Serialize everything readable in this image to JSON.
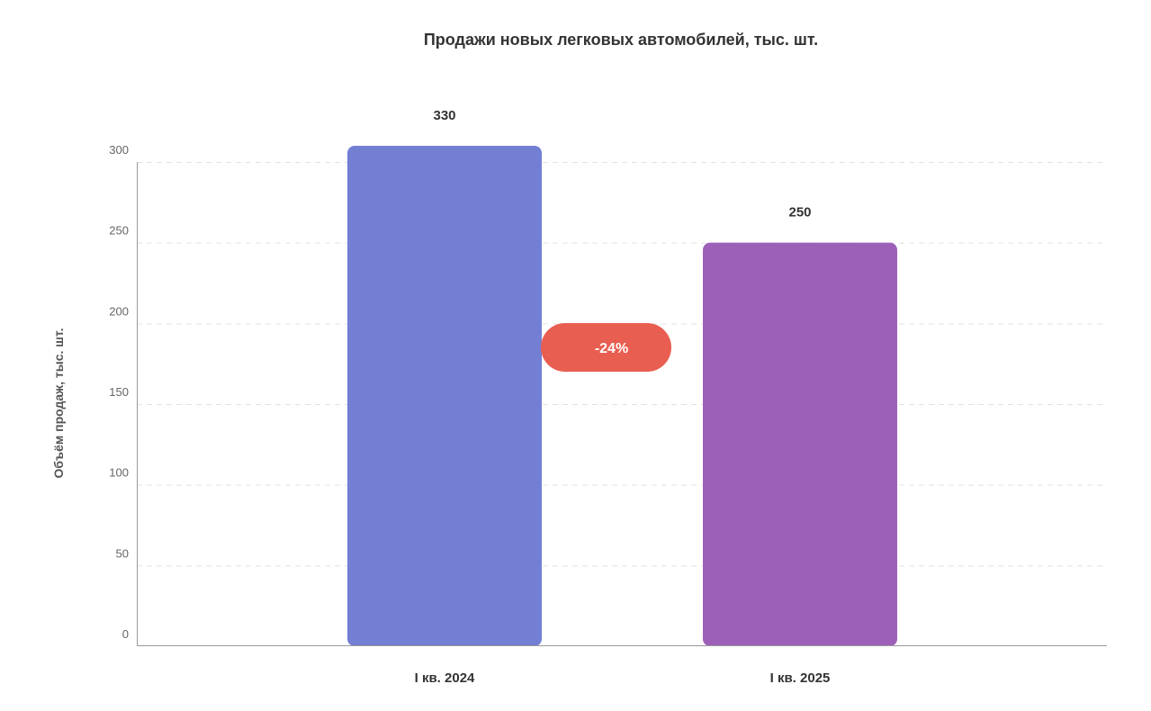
{
  "chart_data": {
    "type": "bar",
    "title": "Продажи новых легковых автомобилей, тыс. шт.",
    "xlabel": "",
    "ylabel": "Объём продаж, тыс. шт.",
    "categories": [
      "I кв. 2024",
      "I кв. 2025"
    ],
    "values": [
      330,
      250
    ],
    "value_labels": [
      "330",
      "250"
    ],
    "yticks": [
      0,
      50,
      100,
      150,
      200,
      250,
      300
    ],
    "ylim": [
      0,
      300
    ],
    "grid": true,
    "bar_colors": [
      "#737fd3",
      "#9d60b8"
    ],
    "annotation": {
      "text": "-24%",
      "color": "#e85e50"
    }
  }
}
